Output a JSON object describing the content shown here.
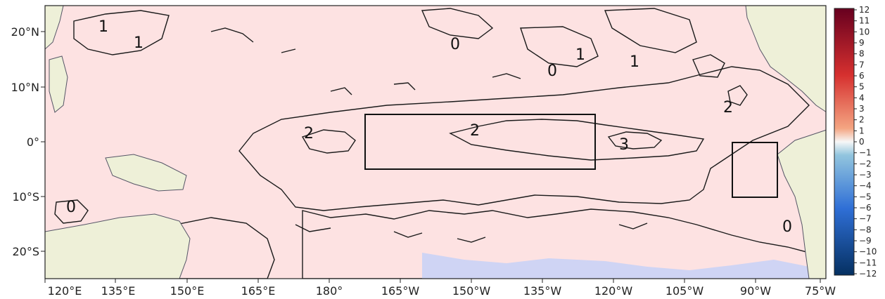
{
  "map": {
    "x_ticks": [
      "120°E",
      "135°E",
      "150°E",
      "165°E",
      "180°",
      "165°W",
      "150°W",
      "135°W",
      "120°W",
      "105°W",
      "90°W",
      "75°W"
    ],
    "y_ticks": [
      "20°N",
      "10°N",
      "0°",
      "10°S",
      "20°S"
    ],
    "contour_labels": [
      "1",
      "1",
      "0",
      "1",
      "0",
      "1",
      "2",
      "2",
      "3",
      "2",
      "0",
      "0"
    ],
    "colorbar": {
      "ticks": [
        "12",
        "11",
        "10",
        "9",
        "8",
        "7",
        "6",
        "5",
        "4",
        "3",
        "2",
        "1",
        "0",
        "−1",
        "−2",
        "−3",
        "−4",
        "−5",
        "−6",
        "−7",
        "−8",
        "−9",
        "−10",
        "−11",
        "−12"
      ],
      "colors": {
        "max": "#67001f",
        "high": "#d6604d",
        "mid": "#f7f7f7",
        "low": "#4393c3",
        "min": "#053061"
      }
    },
    "colors": {
      "land": "#eef0d8",
      "ocean_zero": "#ffffff",
      "warm_1": "#fde2e2",
      "warm_2": "#f4a9a9",
      "warm_3": "#ec8585",
      "cool": "#e6e8fb"
    },
    "boxes": [
      "central-pacific-box",
      "eastern-pacific-box"
    ]
  }
}
